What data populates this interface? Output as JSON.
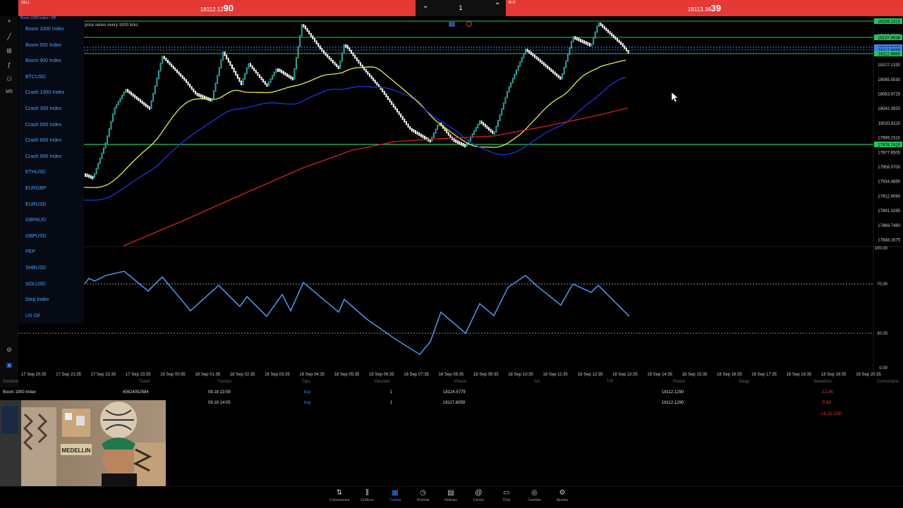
{
  "trade_bar": {
    "sell_label": "SELL",
    "sell_price_main": "18112.12",
    "sell_price_big": "90",
    "lot": "1",
    "buy_label": "BUY",
    "buy_price_main": "18113.38",
    "buy_price_big": "39"
  },
  "symbol_header": "Boom 1000 Index • M5",
  "symbols": [
    "Boom 1000 Index",
    "Boom 500 Index",
    "Boom 900 Index",
    "BTCUSD",
    "Crash 1000 Index",
    "Crash 300 Index",
    "Crash 500 Index",
    "Crash 600 Index",
    "Crash 900 Index",
    "ETHUSD",
    "EURGBP",
    "EURUSD",
    "GBPAUD",
    "GBPUSD",
    "PEP",
    "SHBUSD",
    "SOLUSD",
    "Step Index",
    "US Oil"
  ],
  "left_tools": {
    "timeframe": "M5"
  },
  "chart": {
    "indicator_label": "price series every 1000 ticks",
    "price_axis": [
      "18169.2313",
      "18150.2995",
      "18129.3140",
      "18107.1330",
      "18085.5530",
      "18063.9725",
      "18042.3920",
      "18020.8115",
      "17999.2310",
      "17977.6505",
      "17956.0700",
      "17934.4895",
      "17912.9090",
      "17891.3285",
      "17869.7480",
      "17848.1675"
    ],
    "price_tags": [
      {
        "label": "18169.2313",
        "color": "#22c55e"
      },
      {
        "label": "18137.8638",
        "color": "#22c55e"
      },
      {
        "label": "18124.5779",
        "color": "#3b82f6"
      },
      {
        "label": "18117.8059",
        "color": "#3b82f6"
      },
      {
        "label": "18112.8880",
        "color": "#22c55e"
      },
      {
        "label": "17978.7418",
        "color": "#22c55e"
      }
    ],
    "osc_axis": [
      "100.00",
      "70.00",
      "30.00",
      "0.00"
    ],
    "time_axis": [
      "17 Sep 20:35",
      "17 Sep 21:35",
      "17 Sep 22:35",
      "17 Sep 23:35",
      "18 Sep 00:35",
      "18 Sep 01:35",
      "18 Sep 02:35",
      "18 Sep 03:35",
      "18 Sep 04:35",
      "18 Sep 05:35",
      "18 Sep 06:35",
      "18 Sep 07:35",
      "18 Sep 08:35",
      "18 Sep 09:35",
      "18 Sep 10:35",
      "18 Sep 11:35",
      "18 Sep 12:35",
      "18 Sep 13:35",
      "18 Sep 14:35",
      "18 Sep 15:35",
      "18 Sep 16:35",
      "18 Sep 17:35",
      "18 Sep 18:35",
      "18 Sep 19:35",
      "18 Sep 20:35"
    ],
    "colors": {
      "up": "#26a69a",
      "down": "#ffffff",
      "ma_fast": "#e8e84a",
      "ma_mid": "#2233dd",
      "ma_slow": "#d32222",
      "osc": "#4a90e2",
      "level": "#22c55e"
    }
  },
  "positions": {
    "headers": [
      "Símbolo",
      "Ticket",
      "Tiempo",
      "Tipo",
      "Volumen",
      "Precio",
      "S/L",
      "T/P",
      "Precio",
      "Swap",
      "Beneficio",
      "Comentario"
    ],
    "rows": [
      {
        "symbol": "Boom 1000 Index",
        "ticket": "40624052584",
        "time": "09.18 13:59",
        "type": "buy",
        "volume": "1",
        "price": "18124.5779",
        "current": "18112.1290",
        "profit": "-12.45"
      },
      {
        "symbol": "",
        "ticket": "",
        "time": "09.18 14:05",
        "type": "buy",
        "volume": "1",
        "price": "18117.8059",
        "current": "18112.1290",
        "profit": "-5.68"
      }
    ],
    "total": "-18.13 USD"
  },
  "webcam": {
    "sign_text": "MEDELLIN"
  },
  "nav": [
    {
      "label": "Cotizaciones",
      "icon": "arrows-icon"
    },
    {
      "label": "Gráficos",
      "icon": "candles-icon"
    },
    {
      "label": "Trading",
      "icon": "chart-icon"
    },
    {
      "label": "Historial",
      "icon": "history-icon"
    },
    {
      "label": "Noticias",
      "icon": "news-icon"
    },
    {
      "label": "Correo",
      "icon": "mail-icon"
    },
    {
      "label": "Chat",
      "icon": "chat-icon"
    },
    {
      "label": "Cuentas",
      "icon": "accounts-icon"
    },
    {
      "label": "Ajustes",
      "icon": "gear-icon"
    }
  ]
}
